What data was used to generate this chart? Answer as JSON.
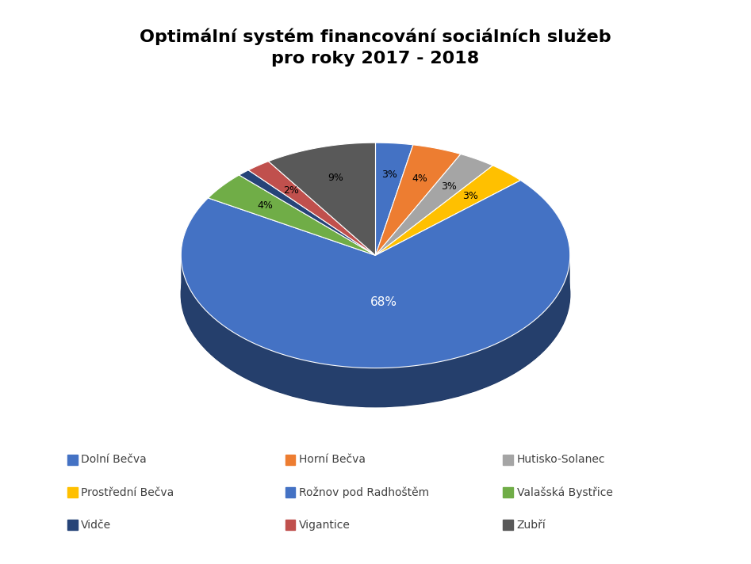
{
  "title": "Optimální systém financování sociálních služeb\npro roky 2017 - 2018",
  "title_fontsize": 16,
  "labels": [
    "Dolní Bečva",
    "Horní Bečva",
    "Hutisko-Solanec",
    "Prostřední Bečva",
    "Rožnov pod Radhoštěm",
    "Valašská Bystřice",
    "Vidče",
    "Vigantice",
    "Zubří"
  ],
  "values": [
    3,
    4,
    3,
    3,
    68,
    4,
    1,
    2,
    9
  ],
  "pct_labels": [
    "3%",
    "4%",
    "3%",
    "3%",
    "68%",
    "4%",
    "",
    "2%",
    "9%"
  ],
  "colors": [
    "#4472C4",
    "#ED7D31",
    "#A5A5A5",
    "#FFC000",
    "#4472C4",
    "#70AD47",
    "#264478",
    "#C0504D",
    "#595959"
  ],
  "shadow_color": "#1F3864",
  "background_color": "#FFFFFF",
  "legend_fontsize": 10,
  "startangle": 90
}
